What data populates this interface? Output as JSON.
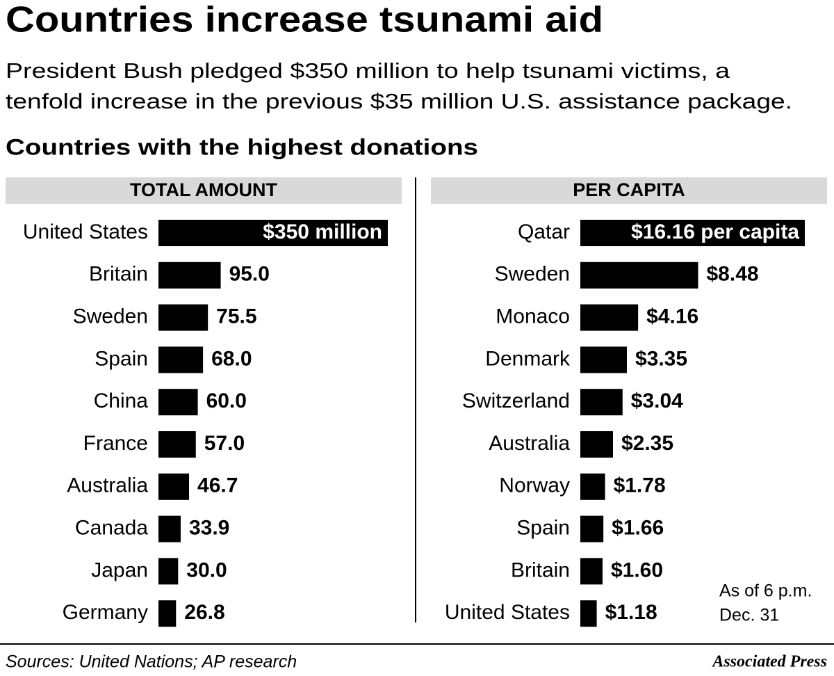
{
  "title": "Countries increase tsunami aid",
  "subtitle": [
    "President Bush pledged $350 million to help tsunami victims, a",
    "tenfold increase in the previous $35 million U.S. assistance package."
  ],
  "heading": "Countries with the highest donations",
  "note": [
    "As of 6 p.m.",
    "Dec. 31"
  ],
  "source": "Sources: United Nations; AP research",
  "credit": "Associated Press",
  "chart_data": [
    {
      "type": "bar",
      "orientation": "horizontal",
      "title": "TOTAL AMOUNT",
      "color": "#000000",
      "categories": [
        "United States",
        "Britain",
        "Sweden",
        "Spain",
        "China",
        "France",
        "Australia",
        "Canada",
        "Japan",
        "Germany"
      ],
      "values": [
        350,
        95.0,
        75.5,
        68.0,
        60.0,
        57.0,
        46.7,
        33.9,
        30.0,
        26.8
      ],
      "value_labels": [
        "$350 million",
        "95.0",
        "75.5",
        "68.0",
        "60.0",
        "57.0",
        "46.7",
        "33.9",
        "30.0",
        "26.8"
      ]
    },
    {
      "type": "bar",
      "orientation": "horizontal",
      "title": "PER CAPITA",
      "color": "#000000",
      "categories": [
        "Qatar",
        "Sweden",
        "Monaco",
        "Denmark",
        "Switzerland",
        "Australia",
        "Norway",
        "Spain",
        "Britain",
        "United States"
      ],
      "values": [
        16.16,
        8.48,
        4.16,
        3.35,
        3.04,
        2.35,
        1.78,
        1.66,
        1.6,
        1.18
      ],
      "value_labels": [
        "$16.16 per capita",
        "$8.48",
        "$4.16",
        "$3.35",
        "$3.04",
        "$2.35",
        "$1.78",
        "$1.66",
        "$1.60",
        "$1.18"
      ]
    }
  ]
}
